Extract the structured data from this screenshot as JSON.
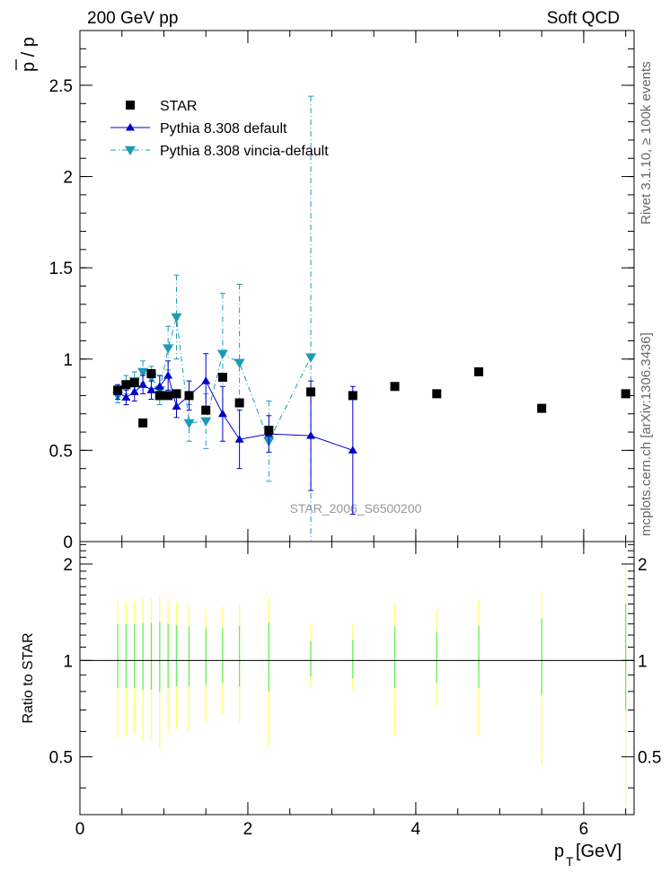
{
  "header": {
    "left": "200 GeV pp",
    "right": "Soft QCD"
  },
  "side_labels": {
    "rivet": "Rivet 3.1.10, ≥ 100k events",
    "mcplots": "mcplots.cern.ch [arXiv:1306.3436]"
  },
  "colors": {
    "star": "#000000",
    "pythia": "#0000cc",
    "vincia": "#1a9bb5",
    "band_yellow": "#ffff66",
    "band_green": "#66ee66"
  },
  "chart_data": [
    {
      "type": "scatter",
      "ylabel": "p̅ / p",
      "ylabel_main": "p / p",
      "watermark": "STAR_2006_S6500200",
      "xlim": [
        0,
        6.6
      ],
      "ylim": [
        0,
        2.8
      ],
      "yticks": [
        {
          "v": 0,
          "label": "0"
        },
        {
          "v": 0.5,
          "label": "0.5"
        },
        {
          "v": 1,
          "label": "1"
        },
        {
          "v": 1.5,
          "label": "1.5"
        },
        {
          "v": 2,
          "label": "2"
        },
        {
          "v": 2.5,
          "label": "2.5"
        }
      ],
      "legend_position": "top-left",
      "series": [
        {
          "name": "STAR",
          "marker": "square",
          "x": [
            0.45,
            0.55,
            0.65,
            0.75,
            0.85,
            0.95,
            1.05,
            1.15,
            1.3,
            1.5,
            1.7,
            1.9,
            2.25,
            2.75,
            3.25,
            3.75,
            4.25,
            4.75,
            5.5,
            6.5
          ],
          "y": [
            0.83,
            0.86,
            0.87,
            0.65,
            0.92,
            0.8,
            0.8,
            0.81,
            0.8,
            0.72,
            0.9,
            0.76,
            0.61,
            0.82,
            0.8,
            0.85,
            0.81,
            0.93,
            0.73,
            0.81
          ]
        },
        {
          "name": "Pythia 8.308 default",
          "marker": "triangle-up",
          "x": [
            0.45,
            0.55,
            0.65,
            0.75,
            0.85,
            0.95,
            1.05,
            1.15,
            1.3,
            1.5,
            1.7,
            1.9,
            2.25,
            2.75,
            3.25
          ],
          "y": [
            0.82,
            0.79,
            0.82,
            0.86,
            0.83,
            0.85,
            0.91,
            0.74,
            0.8,
            0.88,
            0.7,
            0.56,
            0.59,
            0.58,
            0.5
          ],
          "err": [
            0.04,
            0.04,
            0.05,
            0.05,
            0.05,
            0.06,
            0.08,
            0.06,
            0.08,
            0.15,
            0.15,
            0.16,
            0.1,
            0.3,
            0.35
          ]
        },
        {
          "name": "Pythia 8.308 vincia-default",
          "marker": "triangle-down",
          "x": [
            0.45,
            0.55,
            0.65,
            0.75,
            0.85,
            0.95,
            1.05,
            1.15,
            1.3,
            1.5,
            1.7,
            1.9,
            2.25,
            2.75
          ],
          "y": [
            0.8,
            0.86,
            0.88,
            0.93,
            0.9,
            0.83,
            1.06,
            1.23,
            0.65,
            0.66,
            1.03,
            0.98,
            0.55,
            1.01
          ],
          "err": [
            0.04,
            0.05,
            0.05,
            0.06,
            0.06,
            0.08,
            0.12,
            0.23,
            0.1,
            0.15,
            0.33,
            0.43,
            0.22,
            1.43
          ]
        }
      ]
    },
    {
      "type": "scatter",
      "ylabel": "Ratio to STAR",
      "xlabel": "p",
      "xlabel_sub": "T",
      "xlabel_unit": " [GeV]",
      "xlim": [
        0,
        6.6
      ],
      "ylim": [
        0.33,
        2.35
      ],
      "xticks": [
        {
          "v": 0,
          "label": "0"
        },
        {
          "v": 2,
          "label": "2"
        },
        {
          "v": 4,
          "label": "4"
        },
        {
          "v": 6,
          "label": "6"
        }
      ],
      "yticks": [
        {
          "v": 0.5,
          "label": "0.5"
        },
        {
          "v": 1,
          "label": "1"
        },
        {
          "v": 2,
          "label": "2"
        }
      ],
      "reference_line": 1,
      "bands": {
        "x": [
          0.45,
          0.55,
          0.65,
          0.75,
          0.85,
          0.95,
          1.05,
          1.15,
          1.3,
          1.5,
          1.7,
          1.9,
          2.25,
          2.75,
          3.25,
          3.75,
          4.25,
          4.75,
          5.5,
          6.5
        ],
        "total_low": [
          0.57,
          0.58,
          0.59,
          0.56,
          0.56,
          0.53,
          0.59,
          0.61,
          0.6,
          0.64,
          0.68,
          0.64,
          0.54,
          0.83,
          0.81,
          0.58,
          0.72,
          0.58,
          0.47,
          0.35
        ],
        "total_high": [
          1.55,
          1.53,
          1.53,
          1.56,
          1.57,
          1.58,
          1.54,
          1.52,
          1.48,
          1.45,
          1.47,
          1.5,
          1.58,
          1.3,
          1.3,
          1.5,
          1.43,
          1.55,
          1.63,
          2.0
        ],
        "stat_low": [
          0.82,
          0.82,
          0.82,
          0.81,
          0.81,
          0.8,
          0.82,
          0.83,
          0.83,
          0.84,
          0.85,
          0.83,
          0.8,
          0.89,
          0.88,
          0.82,
          0.85,
          0.82,
          0.78,
          0.7
        ],
        "stat_high": [
          1.3,
          1.3,
          1.3,
          1.31,
          1.31,
          1.32,
          1.3,
          1.29,
          1.27,
          1.26,
          1.26,
          1.28,
          1.31,
          1.15,
          1.16,
          1.27,
          1.23,
          1.28,
          1.35,
          1.5
        ]
      }
    }
  ]
}
